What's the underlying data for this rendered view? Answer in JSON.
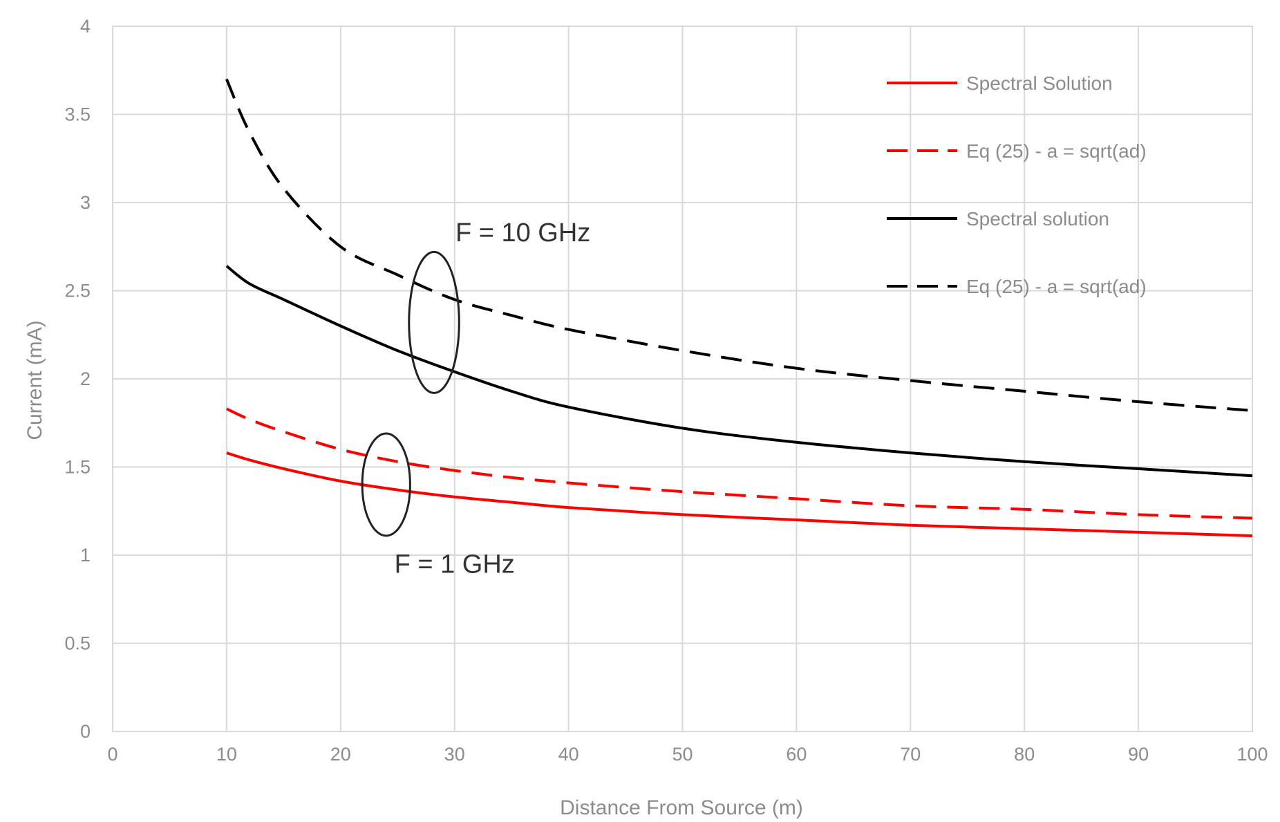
{
  "chart_data": {
    "type": "line",
    "xlabel": "Distance From Source (m)",
    "ylabel": "Current (mA)",
    "xlim": [
      0,
      100
    ],
    "ylim": [
      0,
      4
    ],
    "x_ticks": [
      "0",
      "10",
      "20",
      "30",
      "40",
      "50",
      "60",
      "70",
      "80",
      "90",
      "100"
    ],
    "y_ticks": [
      "0",
      "0.5",
      "1",
      "1.5",
      "2",
      "2.5",
      "3",
      "3.5",
      "4"
    ],
    "grid": true,
    "legend_position": "top-right",
    "series": [
      {
        "name": "Spectral Solution",
        "color": "#ff0000",
        "dash": "solid",
        "x": [
          10,
          12,
          15,
          20,
          25,
          30,
          35,
          40,
          50,
          60,
          70,
          80,
          90,
          100
        ],
        "y": [
          1.58,
          1.54,
          1.49,
          1.42,
          1.37,
          1.33,
          1.3,
          1.27,
          1.23,
          1.2,
          1.17,
          1.15,
          1.13,
          1.11
        ]
      },
      {
        "name": "Eq (25) - a = sqrt(ad)",
        "color": "#ff0000",
        "dash": "dashed",
        "x": [
          10,
          12,
          15,
          20,
          25,
          30,
          35,
          40,
          50,
          60,
          70,
          80,
          90,
          100
        ],
        "y": [
          1.83,
          1.77,
          1.7,
          1.6,
          1.53,
          1.48,
          1.44,
          1.41,
          1.36,
          1.32,
          1.28,
          1.26,
          1.23,
          1.21
        ]
      },
      {
        "name": "Spectral solution",
        "color": "#000000",
        "dash": "solid",
        "x": [
          10,
          12,
          15,
          20,
          25,
          30,
          35,
          40,
          50,
          60,
          70,
          80,
          90,
          100
        ],
        "y": [
          2.64,
          2.54,
          2.45,
          2.3,
          2.16,
          2.04,
          1.93,
          1.84,
          1.72,
          1.64,
          1.58,
          1.53,
          1.49,
          1.45
        ]
      },
      {
        "name": "Eq (25) - a = sqrt(ad)",
        "color": "#000000",
        "dash": "dashed",
        "x": [
          10,
          12,
          15,
          20,
          25,
          30,
          35,
          40,
          50,
          60,
          70,
          80,
          90,
          100
        ],
        "y": [
          3.7,
          3.4,
          3.08,
          2.75,
          2.59,
          2.45,
          2.36,
          2.28,
          2.16,
          2.06,
          1.99,
          1.93,
          1.87,
          1.82
        ]
      }
    ],
    "annotations": [
      {
        "text": "F = 10 GHz",
        "x": 36,
        "y": 2.78,
        "ellipse": {
          "cx": 28.2,
          "cy": 2.32,
          "rx": 2.2,
          "ry": 0.4
        }
      },
      {
        "text": "F = 1 GHz",
        "x": 30,
        "y": 0.9,
        "ellipse": {
          "cx": 24.0,
          "cy": 1.4,
          "rx": 2.1,
          "ry": 0.29
        }
      }
    ]
  }
}
